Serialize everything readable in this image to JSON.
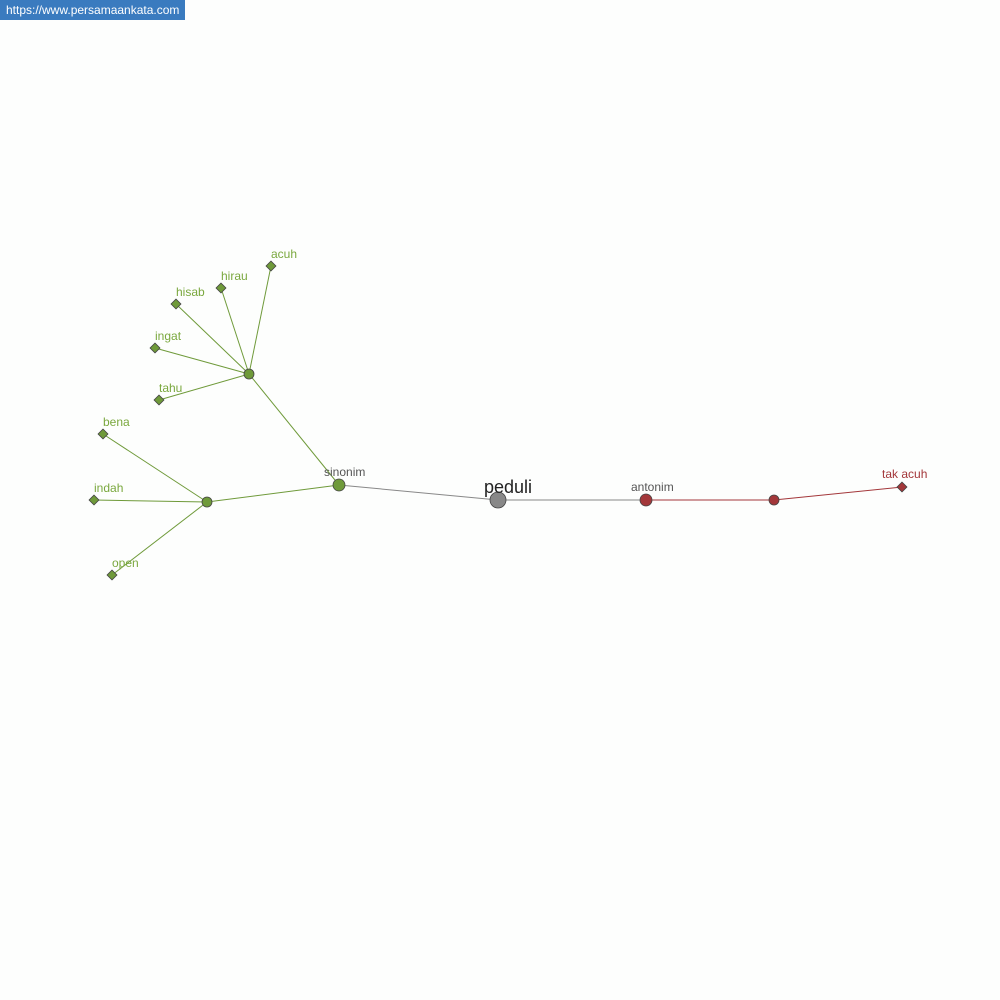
{
  "site_link": "https://www.persamaankata.com",
  "colors": {
    "synonym": "#6f9a3a",
    "synonym_label": "#7aa83e",
    "antonym": "#a3373a",
    "root": "#888888",
    "category_label": "#555555",
    "root_label": "#222222"
  },
  "root": {
    "id": "root",
    "label": "peduli"
  },
  "nodes": [
    {
      "id": "sinonim",
      "label": "sinonim",
      "kind": "category-syn"
    },
    {
      "id": "g1",
      "label": "",
      "kind": "group-syn"
    },
    {
      "id": "g2",
      "label": "",
      "kind": "group-syn"
    },
    {
      "id": "acuh",
      "label": "acuh",
      "kind": "syn"
    },
    {
      "id": "hirau",
      "label": "hirau",
      "kind": "syn"
    },
    {
      "id": "hisab",
      "label": "hisab",
      "kind": "syn"
    },
    {
      "id": "ingat",
      "label": "ingat",
      "kind": "syn"
    },
    {
      "id": "tahu",
      "label": "tahu",
      "kind": "syn"
    },
    {
      "id": "bena",
      "label": "bena",
      "kind": "syn"
    },
    {
      "id": "indah",
      "label": "indah",
      "kind": "syn"
    },
    {
      "id": "open",
      "label": "open",
      "kind": "syn"
    },
    {
      "id": "antonim",
      "label": "antonim",
      "kind": "category-ant"
    },
    {
      "id": "a1",
      "label": "",
      "kind": "group-ant"
    },
    {
      "id": "takacuh",
      "label": "tak acuh",
      "kind": "ant"
    }
  ],
  "edges": [
    [
      "root",
      "sinonim"
    ],
    [
      "sinonim",
      "g1"
    ],
    [
      "sinonim",
      "g2"
    ],
    [
      "g1",
      "acuh"
    ],
    [
      "g1",
      "hirau"
    ],
    [
      "g1",
      "hisab"
    ],
    [
      "g1",
      "ingat"
    ],
    [
      "g1",
      "tahu"
    ],
    [
      "g2",
      "bena"
    ],
    [
      "g2",
      "indah"
    ],
    [
      "g2",
      "open"
    ],
    [
      "root",
      "antonim"
    ],
    [
      "antonim",
      "a1"
    ],
    [
      "a1",
      "takacuh"
    ]
  ]
}
